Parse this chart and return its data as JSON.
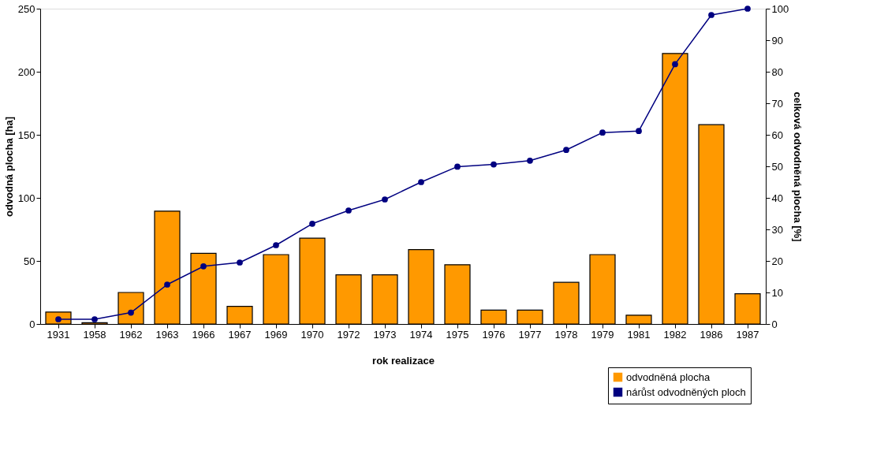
{
  "chart_data": {
    "type": "bar",
    "xlabel": "rok realizace",
    "ylabel": "odvodná plocha [ha]",
    "y2label": "celková odvodněná plocha [%]",
    "categories": [
      "1931",
      "1958",
      "1962",
      "1963",
      "1966",
      "1967",
      "1969",
      "1970",
      "1972",
      "1973",
      "1974",
      "1975",
      "1976",
      "1977",
      "1978",
      "1979",
      "1981",
      "1982",
      "1986",
      "1987"
    ],
    "series": [
      {
        "name": "odvodněná plocha",
        "color": "#ff9900",
        "values": [
          9.5,
          1,
          25,
          89.5,
          56,
          14,
          55,
          68,
          39,
          39,
          59,
          47,
          11,
          11,
          33,
          55,
          7,
          214.5,
          158,
          24
        ]
      },
      {
        "name": "nárůst odvodněných ploch",
        "type": "line",
        "axis": "y2",
        "color": "#000080",
        "values": [
          1.5,
          1.5,
          3.6,
          12.5,
          18.3,
          19.5,
          25,
          31.8,
          36,
          39.5,
          45,
          49.9,
          50.6,
          51.8,
          55.2,
          60.7,
          61.2,
          82.4,
          98,
          100
        ]
      }
    ],
    "ylim": [
      0,
      250
    ],
    "yticks": [
      0,
      50,
      100,
      150,
      200,
      250
    ],
    "y2lim": [
      0,
      100
    ],
    "y2ticks": [
      0,
      10,
      20,
      30,
      40,
      50,
      60,
      70,
      80,
      90,
      100
    ],
    "legend": "bottom right",
    "marker": "circle",
    "grid": false
  }
}
